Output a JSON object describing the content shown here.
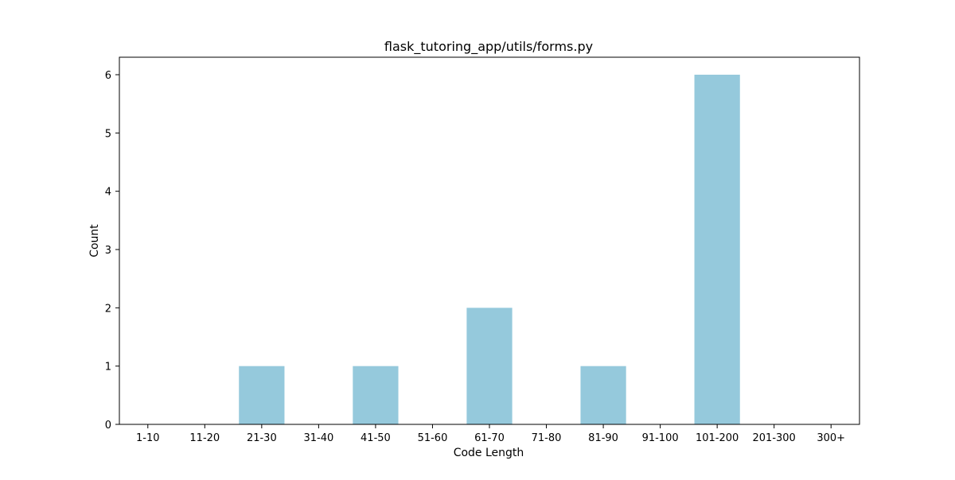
{
  "chart_data": {
    "type": "bar",
    "title": "flask_tutoring_app/utils/forms.py",
    "xlabel": "Code Length",
    "ylabel": "Count",
    "categories": [
      "1-10",
      "11-20",
      "21-30",
      "31-40",
      "41-50",
      "51-60",
      "61-70",
      "71-80",
      "81-90",
      "91-100",
      "101-200",
      "201-300",
      "300+"
    ],
    "values": [
      0,
      0,
      1,
      0,
      1,
      0,
      2,
      0,
      1,
      0,
      6,
      0,
      0
    ],
    "yticks": [
      "0",
      "1",
      "2",
      "3",
      "4",
      "5",
      "6"
    ],
    "ylim": [
      0,
      6.3
    ],
    "grid": false,
    "legend": "none",
    "bar_color": "#95c9dc"
  }
}
